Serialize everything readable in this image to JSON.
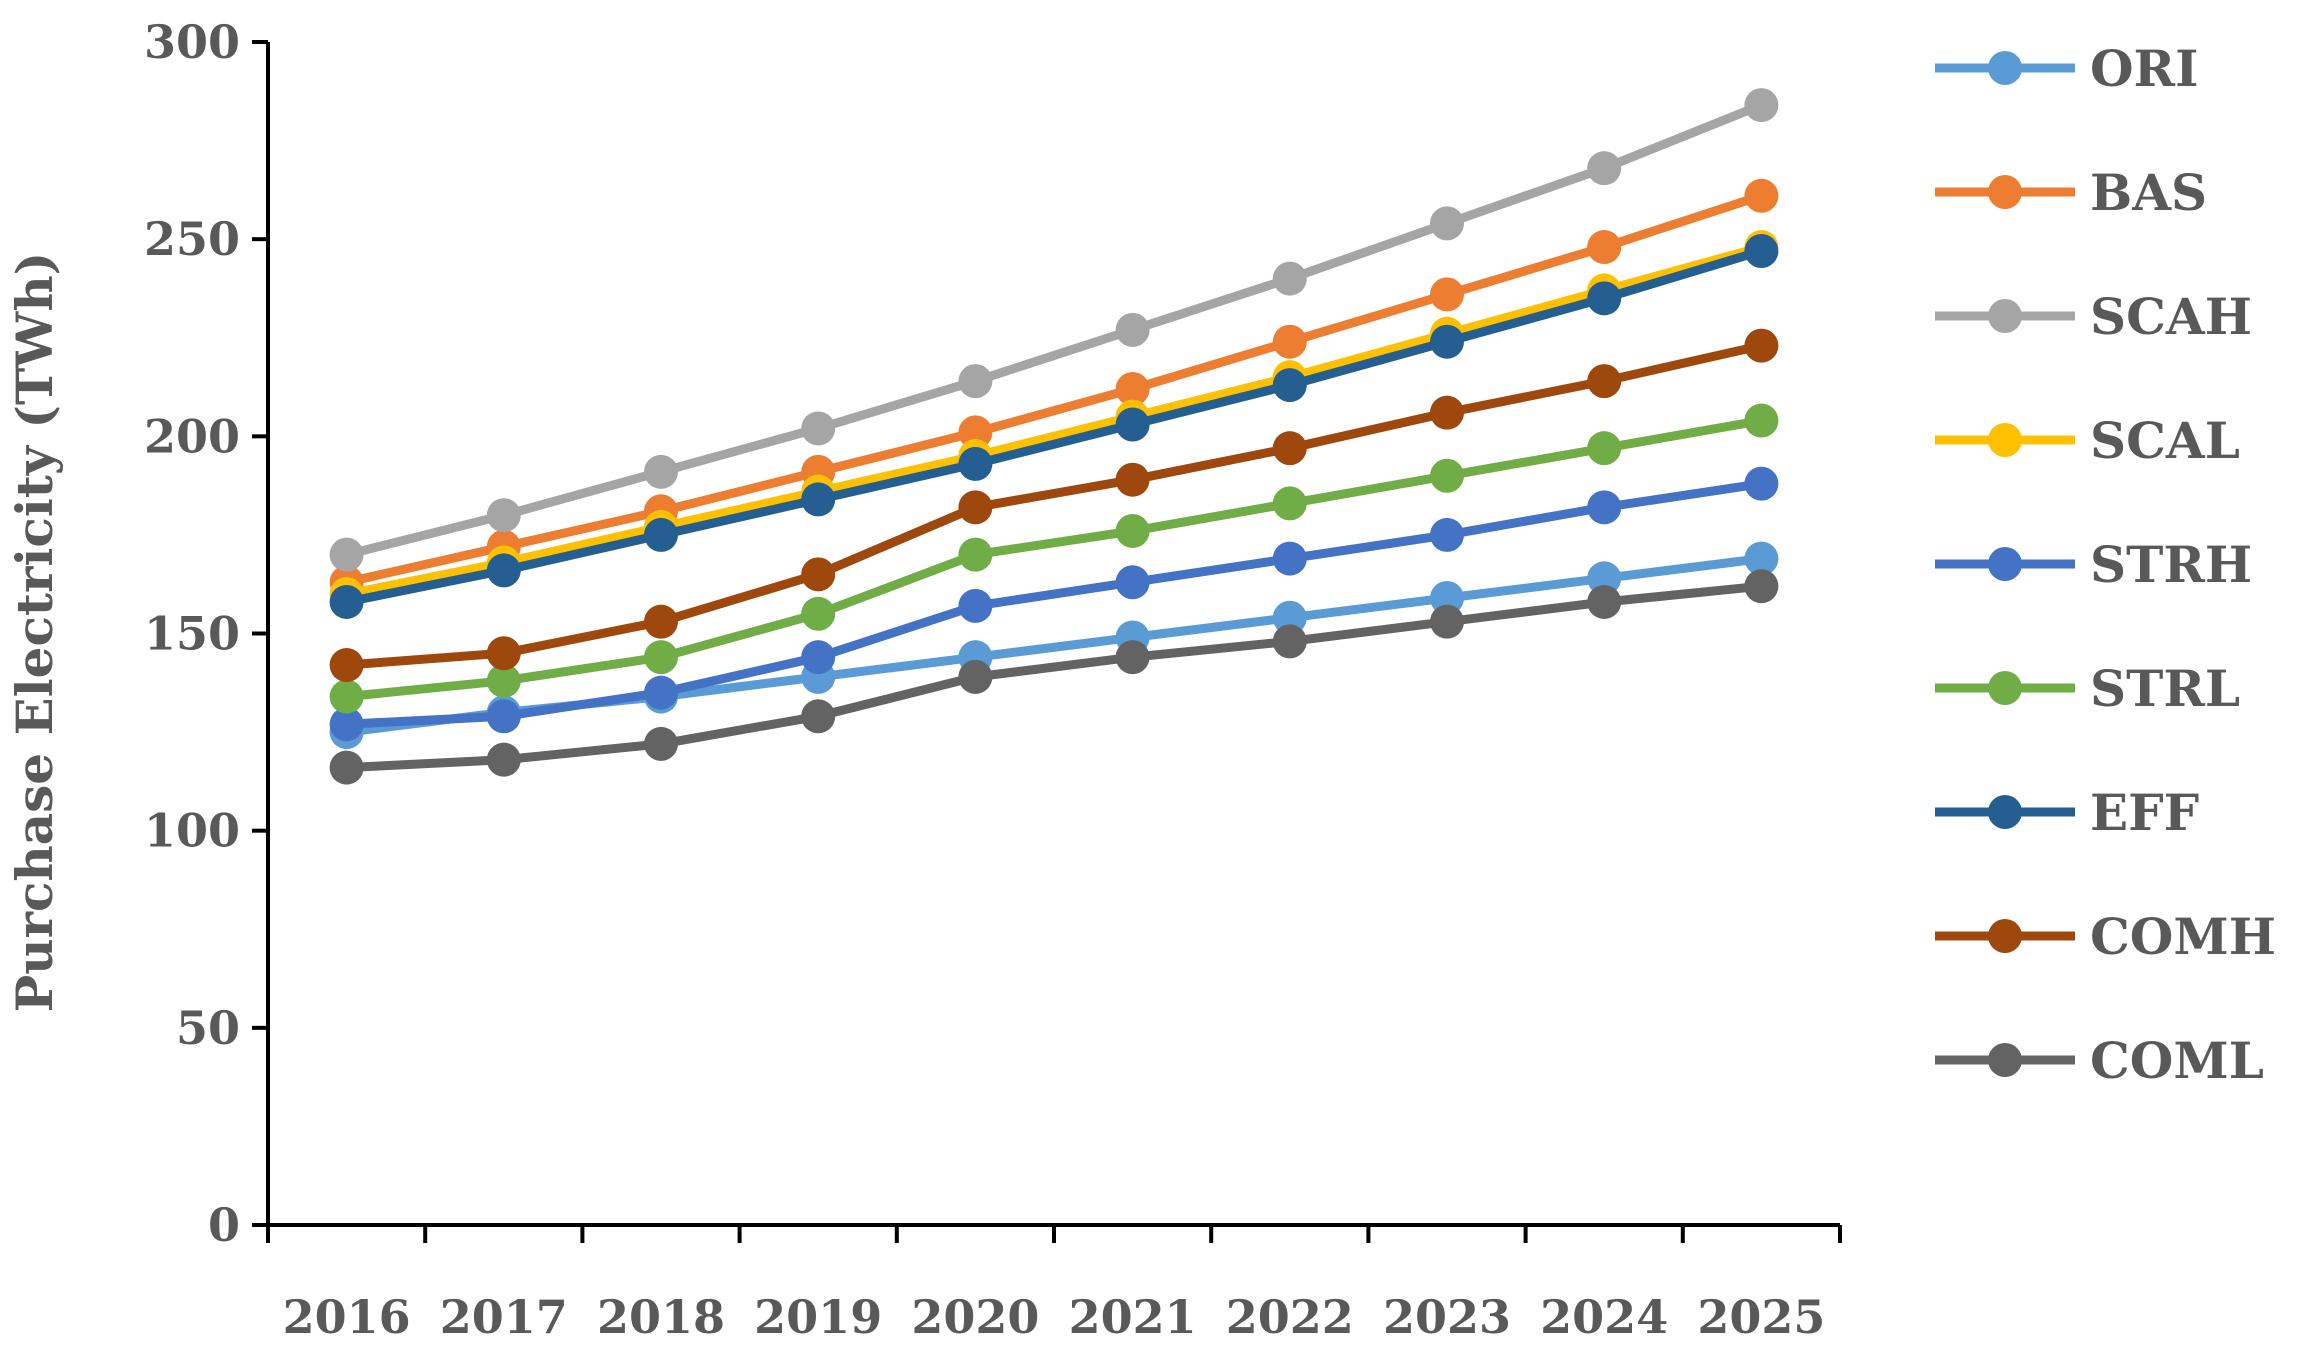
{
  "chart_data": {
    "type": "line",
    "title": "",
    "xlabel": "",
    "ylabel": "Purchase Electricity (TWh)",
    "ylim": [
      0,
      300
    ],
    "yticks": [
      0,
      50,
      100,
      150,
      200,
      250,
      300
    ],
    "categories": [
      "2016",
      "2017",
      "2018",
      "2019",
      "2020",
      "2021",
      "2022",
      "2023",
      "2024",
      "2025"
    ],
    "legend_position": "right",
    "grid": false,
    "series": [
      {
        "name": "ORI",
        "color": "#5B9BD5",
        "values": [
          125,
          130,
          134,
          139,
          144,
          149,
          154,
          159,
          164,
          169
        ]
      },
      {
        "name": "BAS",
        "color": "#ED7D31",
        "values": [
          163,
          172,
          181,
          191,
          201,
          212,
          224,
          236,
          248,
          261
        ]
      },
      {
        "name": "SCAH",
        "color": "#A5A5A5",
        "values": [
          170,
          180,
          191,
          202,
          214,
          227,
          240,
          254,
          268,
          284
        ]
      },
      {
        "name": "SCAL",
        "color": "#FFC000",
        "values": [
          160,
          168,
          177,
          186,
          195,
          205,
          215,
          226,
          237,
          248
        ]
      },
      {
        "name": "STRH",
        "color": "#4472C4",
        "values": [
          127,
          129,
          135,
          144,
          157,
          163,
          169,
          175,
          182,
          188
        ]
      },
      {
        "name": "STRL",
        "color": "#70AD47",
        "values": [
          134,
          138,
          144,
          155,
          170,
          176,
          183,
          190,
          197,
          204
        ]
      },
      {
        "name": "EFF",
        "color": "#255E91",
        "values": [
          158,
          166,
          175,
          184,
          193,
          203,
          213,
          224,
          235,
          247
        ]
      },
      {
        "name": "COMH",
        "color": "#9E480E",
        "values": [
          142,
          145,
          153,
          165,
          182,
          189,
          197,
          206,
          214,
          223
        ]
      },
      {
        "name": "COML",
        "color": "#636363",
        "values": [
          116,
          118,
          122,
          129,
          139,
          144,
          148,
          153,
          158,
          162
        ]
      }
    ]
  }
}
